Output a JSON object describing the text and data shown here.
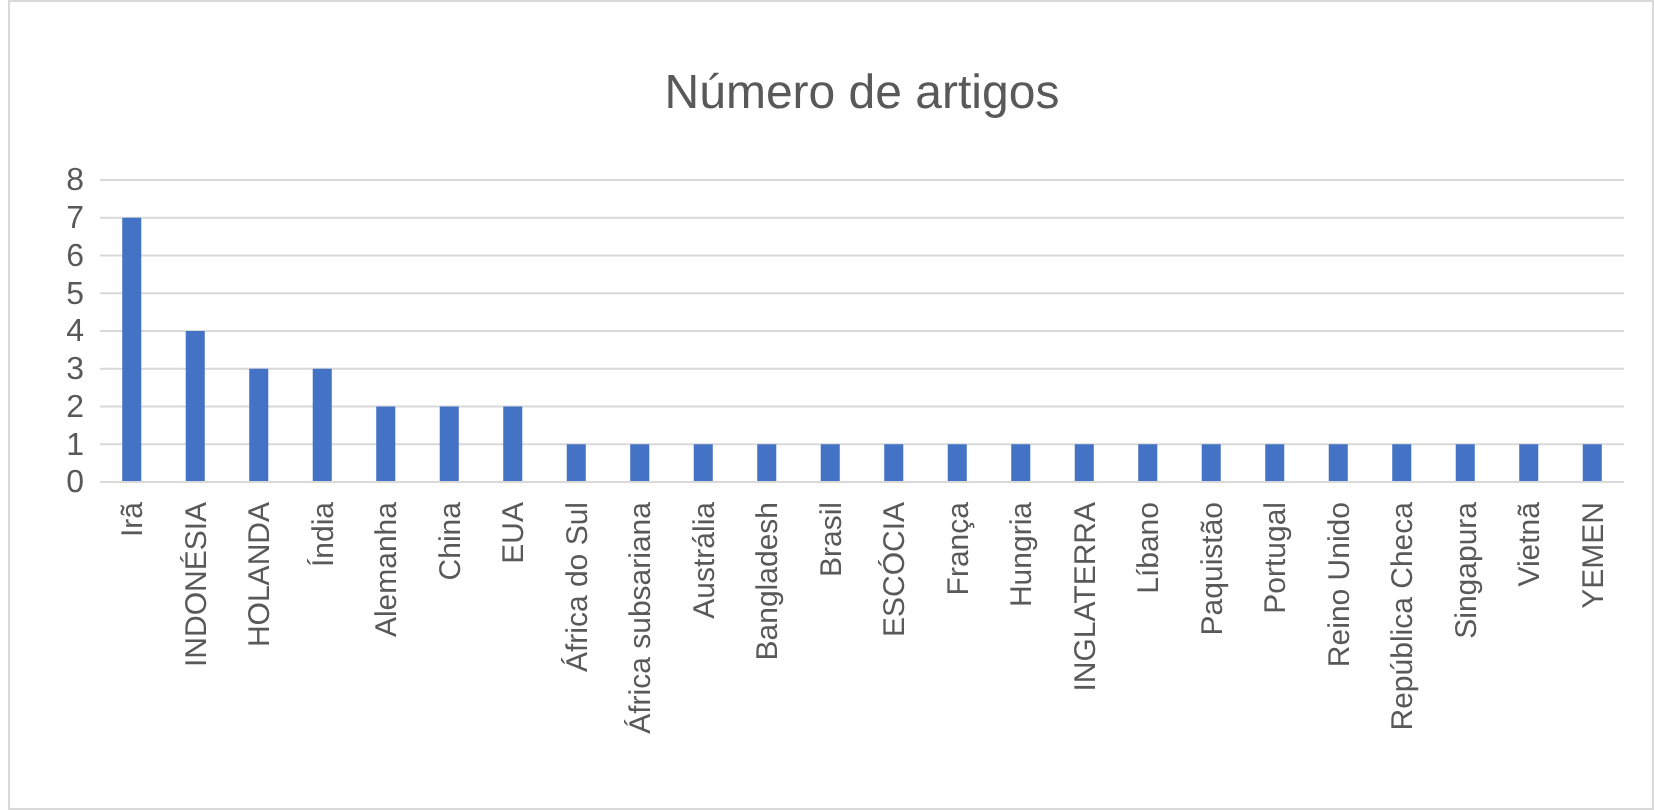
{
  "chart_data": {
    "type": "bar",
    "title": "Número de artigos",
    "categories": [
      "Irã",
      "INDONÉSIA",
      "HOLANDA",
      "Índia",
      "Alemanha",
      "China",
      "EUA",
      "África do Sul",
      "África subsariana",
      "Austrália",
      "Bangladesh",
      "Brasil",
      "ESCÓCIA",
      "França",
      "Hungria",
      "INGLATERRA",
      "Líbano",
      "Paquistão",
      "Portugal",
      "Reino Unido",
      "República Checa",
      "Singapura",
      "Vietnã",
      "YEMEN"
    ],
    "values": [
      7,
      4,
      3,
      3,
      2,
      2,
      2,
      1,
      1,
      1,
      1,
      1,
      1,
      1,
      1,
      1,
      1,
      1,
      1,
      1,
      1,
      1,
      1,
      1
    ],
    "color": "#4472c4",
    "ylim": [
      0,
      8
    ],
    "yticks": [
      0,
      1,
      2,
      3,
      4,
      5,
      6,
      7,
      8
    ],
    "grid": "y"
  }
}
